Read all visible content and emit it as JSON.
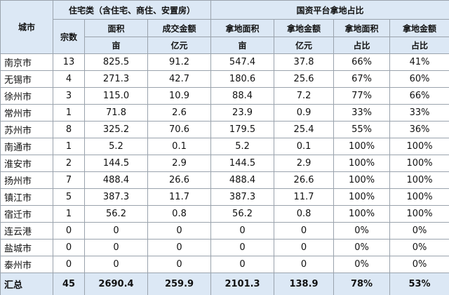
{
  "header": {
    "city": "城市",
    "group_residential": "住宅类（含住宅、商住、安置房）",
    "group_state": "国资平台拿地占比",
    "count": "宗数",
    "columns": [
      [
        "面积",
        "亩"
      ],
      [
        "成交金额",
        "亿元"
      ],
      [
        "拿地面积",
        "亩"
      ],
      [
        "拿地金额",
        "亿元"
      ],
      [
        "拿地面积",
        "占比"
      ],
      [
        "拿地金额",
        "占比"
      ]
    ]
  },
  "rows": [
    [
      "南京市",
      "13",
      "825.5",
      "91.2",
      "547.4",
      "37.8",
      "66%",
      "41%"
    ],
    [
      "无锡市",
      "4",
      "271.3",
      "42.7",
      "180.6",
      "25.6",
      "67%",
      "60%"
    ],
    [
      "徐州市",
      "3",
      "115.0",
      "10.9",
      "88.4",
      "7.2",
      "77%",
      "66%"
    ],
    [
      "常州市",
      "1",
      "71.8",
      "2.6",
      "23.9",
      "0.9",
      "33%",
      "33%"
    ],
    [
      "苏州市",
      "8",
      "325.2",
      "70.6",
      "179.5",
      "25.4",
      "55%",
      "36%"
    ],
    [
      "南通市",
      "1",
      "5.2",
      "0.1",
      "5.2",
      "0.1",
      "100%",
      "100%"
    ],
    [
      "淮安市",
      "2",
      "144.5",
      "2.9",
      "144.5",
      "2.9",
      "100%",
      "100%"
    ],
    [
      "扬州市",
      "7",
      "488.4",
      "26.6",
      "488.4",
      "26.6",
      "100%",
      "100%"
    ],
    [
      "镇江市",
      "5",
      "387.3",
      "11.7",
      "387.3",
      "11.7",
      "100%",
      "100%"
    ],
    [
      "宿迁市",
      "1",
      "56.2",
      "0.8",
      "56.2",
      "0.8",
      "100%",
      "100%"
    ],
    [
      "连云港",
      "0",
      "0",
      "0",
      "0",
      "0",
      "0%",
      "0%"
    ],
    [
      "盐城市",
      "0",
      "0",
      "0",
      "0",
      "0",
      "0%",
      "0%"
    ],
    [
      "泰州市",
      "0",
      "0",
      "0",
      "0",
      "0",
      "0%",
      "0%"
    ]
  ],
  "total": [
    "汇总",
    "45",
    "2690.4",
    "259.9",
    "2101.3",
    "138.9",
    "78%",
    "53%"
  ]
}
